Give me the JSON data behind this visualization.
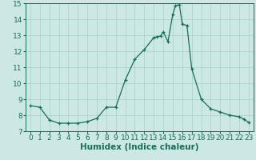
{
  "x_vals": [
    0,
    1,
    2,
    3,
    4,
    5,
    6,
    7,
    8,
    9,
    10,
    11,
    12,
    13,
    13.3,
    13.7,
    14,
    14.5,
    15,
    15.3,
    15.7,
    16,
    16.5,
    17,
    18,
    19,
    20,
    21,
    22,
    22.5,
    23
  ],
  "y_vals": [
    8.6,
    8.5,
    7.7,
    7.5,
    7.5,
    7.5,
    7.6,
    7.8,
    8.5,
    8.5,
    10.2,
    11.5,
    12.1,
    12.85,
    12.9,
    12.95,
    13.2,
    12.6,
    14.3,
    14.85,
    14.9,
    13.7,
    13.6,
    10.9,
    9.0,
    8.4,
    8.2,
    8.0,
    7.9,
    7.75,
    7.55
  ],
  "xlabel": "Humidex (Indice chaleur)",
  "ylim": [
    7,
    15
  ],
  "xlim_left": -0.5,
  "xlim_right": 23.5,
  "yticks": [
    7,
    8,
    9,
    10,
    11,
    12,
    13,
    14,
    15
  ],
  "xticks": [
    0,
    1,
    2,
    3,
    4,
    5,
    6,
    7,
    8,
    9,
    10,
    11,
    12,
    13,
    14,
    15,
    16,
    17,
    18,
    19,
    20,
    21,
    22,
    23
  ],
  "line_color": "#1a6b5a",
  "marker": "+",
  "bg_color": "#cce8e4",
  "grid_color": "#aacfca",
  "tick_fontsize": 6.5,
  "xlabel_fontsize": 7.5
}
